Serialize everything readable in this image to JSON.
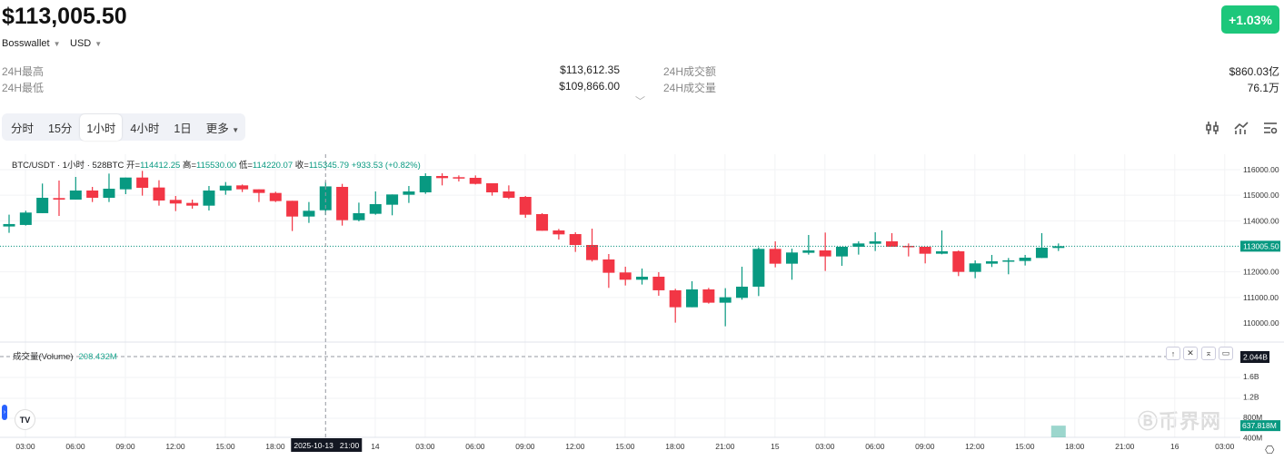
{
  "header": {
    "price": "$113,005.50",
    "change": "+1.03%",
    "exchange": "Bosswallet",
    "currency": "USD"
  },
  "stats": [
    {
      "label": "24H最高",
      "value": "$113,612.35"
    },
    {
      "label": "24H最低",
      "value": "$109,866.00"
    },
    {
      "label": "24H成交额",
      "value": "$860.03亿"
    },
    {
      "label": "24H成交量",
      "value": "76.1万"
    }
  ],
  "tabs": [
    "分时",
    "15分",
    "1小时",
    "4小时",
    "1日",
    "更多"
  ],
  "active_tab": "1小时",
  "icons": [
    "candlestick-icon",
    "indicator-icon",
    "settings-icon"
  ],
  "colors": {
    "up": "#089981",
    "down": "#f23645",
    "badge": "#1dc77b"
  },
  "legend": {
    "symbol": "BTC/USDT · 1小时 · 528BTC",
    "open_label": "开",
    "open": "114412.25",
    "high_label": "高",
    "high": "115530.00",
    "low_label": "低",
    "low": "114220.07",
    "close_label": "收",
    "close": "115345.79",
    "change": "+933.53 (+0.82%)"
  },
  "volume_legend": {
    "label": "成交量(Volume)",
    "value": "208.432M"
  },
  "pane_buttons": [
    "↑",
    "✕",
    "⌅",
    "▭"
  ],
  "watermark": "币界网",
  "tv_logo": "TV",
  "chart_data": {
    "type": "candlestick",
    "interval": "1h",
    "start": "2025-10-13 02:00",
    "last_price": 113005.5,
    "last_price_label": "113005.50",
    "ylim": [
      109700,
      116250
    ],
    "yticks": [
      {
        "v": 116000,
        "t": "116000.00"
      },
      {
        "v": 115000,
        "t": "115000.00"
      },
      {
        "v": 114000,
        "t": "114000.00"
      },
      {
        "v": 112000,
        "t": "112000.00"
      },
      {
        "v": 111000,
        "t": "111000.00"
      },
      {
        "v": 110000,
        "t": "110000.00"
      }
    ],
    "ohlc": [
      [
        113777,
        114239,
        113529,
        113872
      ],
      [
        113837,
        114393,
        113813,
        114322
      ],
      [
        114298,
        115457,
        114298,
        114900
      ],
      [
        114888,
        115574,
        114190,
        114829
      ],
      [
        114829,
        115716,
        114829,
        115184
      ],
      [
        115184,
        115326,
        114734,
        114900
      ],
      [
        114900,
        115846,
        114734,
        115255
      ],
      [
        115231,
        115692,
        115042,
        115692
      ],
      [
        115692,
        115953,
        114983,
        115290
      ],
      [
        115302,
        115586,
        114592,
        114793
      ],
      [
        114817,
        114971,
        114379,
        114675
      ],
      [
        114699,
        114829,
        114474,
        114592
      ],
      [
        114592,
        115361,
        114403,
        115184
      ],
      [
        115184,
        115515,
        115018,
        115373
      ],
      [
        115385,
        115420,
        115125,
        115231
      ],
      [
        115231,
        115231,
        114734,
        115089
      ],
      [
        115089,
        115136,
        114734,
        114770
      ],
      [
        114782,
        114782,
        113599,
        114166
      ],
      [
        114166,
        114734,
        113918,
        114391
      ],
      [
        114412.25,
        115530,
        114220.07,
        115345.79
      ],
      [
        115326,
        115444,
        113811,
        114024
      ],
      [
        114024,
        114710,
        113977,
        114296
      ],
      [
        114273,
        115148,
        114237,
        114651
      ],
      [
        114628,
        115030,
        114214,
        115030
      ],
      [
        115018,
        115361,
        114699,
        115148
      ],
      [
        115112,
        115858,
        115054,
        115752
      ],
      [
        115752,
        115858,
        115385,
        115669
      ],
      [
        115705,
        115775,
        115539,
        115669
      ],
      [
        115681,
        115775,
        115420,
        115444
      ],
      [
        115468,
        115468,
        114983,
        115112
      ],
      [
        115148,
        115385,
        114852,
        114900
      ],
      [
        114935,
        114971,
        114119,
        114237
      ],
      [
        114261,
        114296,
        113610,
        113610
      ],
      [
        113622,
        113681,
        113267,
        113468
      ],
      [
        113480,
        113551,
        112782,
        113054
      ],
      [
        113054,
        113693,
        112404,
        112463
      ],
      [
        112487,
        112699,
        111375,
        111966
      ],
      [
        111978,
        112203,
        111469,
        111694
      ],
      [
        111694,
        112132,
        111505,
        111812
      ],
      [
        111812,
        111990,
        111067,
        111280
      ],
      [
        111280,
        111339,
        110014,
        110617
      ],
      [
        110617,
        111635,
        110617,
        111315
      ],
      [
        111315,
        111375,
        110759,
        110795
      ],
      [
        110795,
        111363,
        109872,
        111008
      ],
      [
        110984,
        112203,
        110913,
        111422
      ],
      [
        111422,
        112960,
        111055,
        112900
      ],
      [
        112900,
        113196,
        112179,
        112321
      ],
      [
        112321,
        112912,
        111694,
        112759
      ],
      [
        112747,
        113445,
        112676,
        112841
      ],
      [
        112841,
        113539,
        112037,
        112605
      ],
      [
        112605,
        112983,
        112238,
        112983
      ],
      [
        112983,
        113196,
        112676,
        113113
      ],
      [
        113101,
        113551,
        112818,
        113196
      ],
      [
        113196,
        113516,
        112983,
        112983
      ],
      [
        113018,
        113113,
        112605,
        112983
      ],
      [
        112983,
        112983,
        112333,
        112711
      ],
      [
        112711,
        113622,
        112688,
        112806
      ],
      [
        112806,
        112841,
        111836,
        112001
      ],
      [
        112001,
        112451,
        111753,
        112333
      ],
      [
        112321,
        112664,
        112191,
        112415
      ],
      [
        112403,
        112545,
        111907,
        112451
      ],
      [
        112427,
        112664,
        112250,
        112557
      ],
      [
        112545,
        113516,
        112545,
        112948
      ],
      [
        112936,
        113113,
        112818,
        113005.5
      ]
    ],
    "volume": {
      "visible_bars": [
        {
          "index": 63,
          "value": 637818000,
          "label": "637.818M"
        }
      ],
      "yticks": [
        {
          "v": 1600000000,
          "t": "1.6B"
        },
        {
          "v": 1200000000,
          "t": "1.2B"
        },
        {
          "v": 800000000,
          "t": "800M"
        },
        {
          "v": 400000000,
          "t": "400M"
        }
      ],
      "crosshair_label": "2.044B",
      "crosshair_value": 2044000000
    },
    "xticks": [
      {
        "h": 1,
        "t": "03:00"
      },
      {
        "h": 4,
        "t": "06:00"
      },
      {
        "h": 7,
        "t": "09:00"
      },
      {
        "h": 10,
        "t": "12:00"
      },
      {
        "h": 13,
        "t": "15:00"
      },
      {
        "h": 16,
        "t": "18:00"
      },
      {
        "h": 22,
        "t": "14"
      },
      {
        "h": 25,
        "t": "03:00"
      },
      {
        "h": 28,
        "t": "06:00"
      },
      {
        "h": 31,
        "t": "09:00"
      },
      {
        "h": 34,
        "t": "12:00"
      },
      {
        "h": 37,
        "t": "15:00"
      },
      {
        "h": 40,
        "t": "18:00"
      },
      {
        "h": 43,
        "t": "21:00"
      },
      {
        "h": 46,
        "t": "15"
      },
      {
        "h": 49,
        "t": "03:00"
      },
      {
        "h": 52,
        "t": "06:00"
      },
      {
        "h": 55,
        "t": "09:00"
      },
      {
        "h": 58,
        "t": "12:00"
      },
      {
        "h": 61,
        "t": "15:00"
      },
      {
        "h": 64,
        "t": "18:00"
      },
      {
        "h": 67,
        "t": "21:00"
      },
      {
        "h": 70,
        "t": "16"
      },
      {
        "h": 73,
        "t": "03:00"
      }
    ],
    "crosshair": {
      "index": 19,
      "label": "2025-10-13   21:00"
    }
  }
}
